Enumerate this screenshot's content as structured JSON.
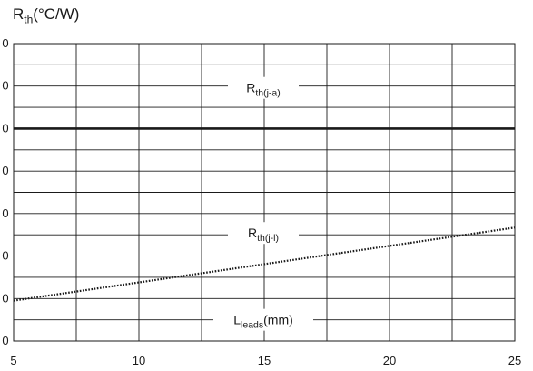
{
  "chart_data": {
    "type": "line",
    "ylabel": {
      "main": "R",
      "sub": "th",
      "rest": "(°C/W)"
    },
    "xlabel": {
      "main": "L",
      "sub": "leads",
      "rest": "(mm)"
    },
    "xlim": [
      5,
      25
    ],
    "x_ticks": [
      "5",
      "10",
      "15",
      "20",
      "25"
    ],
    "y_ticks": [
      "0",
      "0",
      "0",
      "0",
      "0",
      "0",
      "0",
      "0"
    ],
    "grid": true,
    "series": [
      {
        "name": {
          "main": "R",
          "sub": "th(j-a)"
        },
        "style": "solid",
        "color": "#1a1a1a",
        "x": [
          5,
          25
        ],
        "y_level": [
          5,
          5
        ]
      },
      {
        "name": {
          "main": "R",
          "sub": "th(j-l)"
        },
        "style": "dotted",
        "color": "#1a1a1a",
        "x": [
          5,
          25
        ],
        "y_level": [
          0.95,
          2.67
        ]
      }
    ]
  }
}
